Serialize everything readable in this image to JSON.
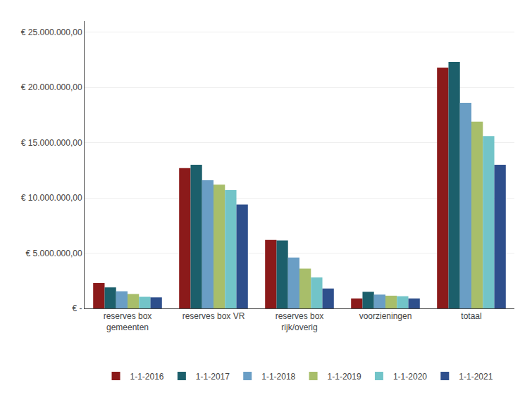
{
  "chart_data": {
    "type": "bar",
    "categories": [
      "reserves box\ngemeenten",
      "reserves box VR",
      "reserves box\nrijk/overig",
      "voorzieningen",
      "totaal"
    ],
    "series": [
      {
        "name": "1-1-2016",
        "color": "#8B1A1A",
        "values": [
          2300000,
          12700000,
          6200000,
          900000,
          21800000
        ]
      },
      {
        "name": "1-1-2017",
        "color": "#1C5F6B",
        "values": [
          1900000,
          13000000,
          6150000,
          1500000,
          22300000
        ]
      },
      {
        "name": "1-1-2018",
        "color": "#6A9EC5",
        "values": [
          1550000,
          11600000,
          4600000,
          1250000,
          18600000
        ]
      },
      {
        "name": "1-1-2019",
        "color": "#A8BE6A",
        "values": [
          1300000,
          11200000,
          3600000,
          1150000,
          16900000
        ]
      },
      {
        "name": "1-1-2020",
        "color": "#72C4C8",
        "values": [
          1050000,
          10700000,
          2800000,
          1100000,
          15600000
        ]
      },
      {
        "name": "1-1-2021",
        "color": "#2E4F8C",
        "values": [
          1000000,
          9400000,
          1800000,
          900000,
          13000000
        ]
      }
    ],
    "ylim": [
      0,
      26000000
    ],
    "yticks": [
      {
        "value": 0,
        "label": "€ -"
      },
      {
        "value": 5000000,
        "label": "€ 5.000.000,00"
      },
      {
        "value": 10000000,
        "label": "€ 10.000.000,00"
      },
      {
        "value": 15000000,
        "label": "€ 15.000.000,00"
      },
      {
        "value": 20000000,
        "label": "€ 20.000.000,00"
      },
      {
        "value": 25000000,
        "label": "€ 25.000.000,00"
      }
    ],
    "grid": true,
    "legend": "bottom"
  }
}
